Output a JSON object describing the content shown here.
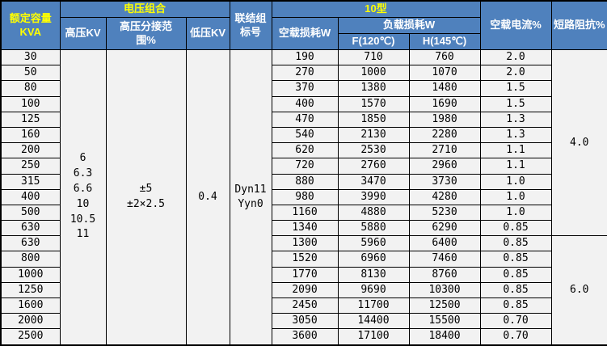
{
  "table": {
    "title_semantic": "transformer-specification-table",
    "headers": {
      "capacity": "额定容量\nKVA",
      "voltage_group": "电压组合",
      "hv": "高压KV",
      "tap_range": "高压分接范\n围%",
      "lv": "低压KV",
      "vector": "联结组\n标号",
      "type10": "10型",
      "no_load_loss": "空载损耗W",
      "load_loss": "负载损耗W",
      "f120": "F(120℃)",
      "h145": "H(145℃)",
      "no_load_current": "空载电流%",
      "impedance": "短路阻抗%"
    },
    "merged": {
      "hv_values": "6\n6.3\n6.6\n10\n10.5\n11",
      "tap_values": "±5\n±2×2.5",
      "lv_value": "0.4",
      "vector_values": "Dyn11\nYyn0",
      "impedance_groups": [
        {
          "value": "4.0",
          "span": 12
        },
        {
          "value": "6.0",
          "span": 7
        }
      ]
    },
    "rows": [
      {
        "kva": "30",
        "no_load": "190",
        "f": "710",
        "h": "760",
        "current": "2.0"
      },
      {
        "kva": "50",
        "no_load": "270",
        "f": "1000",
        "h": "1070",
        "current": "2.0"
      },
      {
        "kva": "80",
        "no_load": "370",
        "f": "1380",
        "h": "1480",
        "current": "1.5"
      },
      {
        "kva": "100",
        "no_load": "400",
        "f": "1570",
        "h": "1690",
        "current": "1.5"
      },
      {
        "kva": "125",
        "no_load": "470",
        "f": "1850",
        "h": "1980",
        "current": "1.3"
      },
      {
        "kva": "160",
        "no_load": "540",
        "f": "2130",
        "h": "2280",
        "current": "1.3"
      },
      {
        "kva": "200",
        "no_load": "620",
        "f": "2530",
        "h": "2710",
        "current": "1.1"
      },
      {
        "kva": "250",
        "no_load": "720",
        "f": "2760",
        "h": "2960",
        "current": "1.1"
      },
      {
        "kva": "315",
        "no_load": "880",
        "f": "3470",
        "h": "3730",
        "current": "1.0"
      },
      {
        "kva": "400",
        "no_load": "980",
        "f": "3990",
        "h": "4280",
        "current": "1.0"
      },
      {
        "kva": "500",
        "no_load": "1160",
        "f": "4880",
        "h": "5230",
        "current": "1.0"
      },
      {
        "kva": "630",
        "no_load": "1340",
        "f": "5880",
        "h": "6290",
        "current": "0.85"
      },
      {
        "kva": "630",
        "no_load": "1300",
        "f": "5960",
        "h": "6400",
        "current": "0.85"
      },
      {
        "kva": "800",
        "no_load": "1520",
        "f": "6960",
        "h": "7460",
        "current": "0.85"
      },
      {
        "kva": "1000",
        "no_load": "1770",
        "f": "8130",
        "h": "8760",
        "current": "0.85"
      },
      {
        "kva": "1250",
        "no_load": "2090",
        "f": "9690",
        "h": "10300",
        "current": "0.85"
      },
      {
        "kva": "1600",
        "no_load": "2450",
        "f": "11700",
        "h": "12500",
        "current": "0.85"
      },
      {
        "kva": "2000",
        "no_load": "3050",
        "f": "14400",
        "h": "15500",
        "current": "0.70"
      },
      {
        "kva": "2500",
        "no_load": "3600",
        "f": "17100",
        "h": "18400",
        "current": "0.70"
      }
    ],
    "colors": {
      "header_bg": "#4f81bd",
      "header_text": "#ffffff",
      "header_accent_text": "#ffff00",
      "body_bg": "#f2f2f2",
      "border": "#000000"
    }
  }
}
